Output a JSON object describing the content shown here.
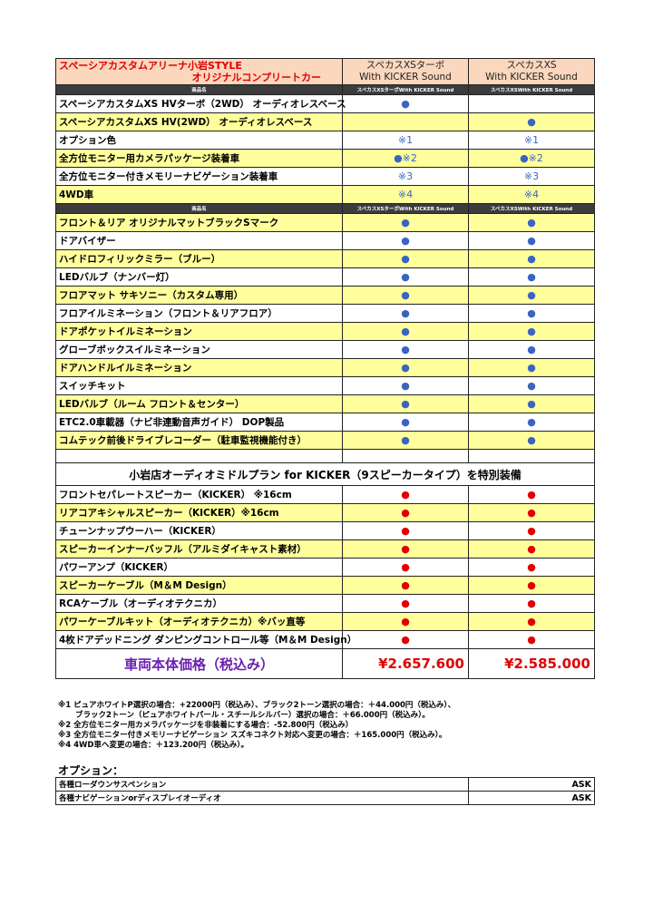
{
  "header": {
    "title_line1": "スペーシアカスタムアリーナ小岩STYLE",
    "title_line2": "オリジナルコンプリートカー",
    "col1_line1": "スペカスXSターボ",
    "col1_line2": "With KICKER Sound",
    "col2_line1": "スペカスXS",
    "col2_line2": "With KICKER Sound"
  },
  "subheader": {
    "name": "商品名",
    "col1": "スペカスXSターボWith KICKER Sound",
    "col2": "スペカスXSWith KICKER Sound"
  },
  "colors": {
    "blue_dot": "#3a64c0",
    "red_dot": "#e00000",
    "yellow": "#ffff9c",
    "pink": "#fbd7bd"
  },
  "base_rows": [
    {
      "label": "スペーシアカスタムXS HVターボ（2WD） オーディオレスベース",
      "c1": "●",
      "c2": ""
    },
    {
      "label": "スペーシアカスタムXS HV(2WD） オーディオレスベース",
      "c1": "",
      "c2": "●"
    },
    {
      "label": "オプション色",
      "c1": "※1",
      "c2": "※1"
    },
    {
      "label": "全方位モニター用カメラパッケージ装着車",
      "c1": "●※2",
      "c2": "●※2"
    },
    {
      "label": "全方位モニター付きメモリーナビゲーション装着車",
      "c1": "※3",
      "c2": "※3"
    },
    {
      "label": "4WD車",
      "c1": "※4",
      "c2": "※4"
    }
  ],
  "equip_rows": [
    {
      "label": "フロント＆リア オリジナルマットブラックSマーク",
      "c1": "●",
      "c2": "●"
    },
    {
      "label": "ドアバイザー",
      "c1": "●",
      "c2": "●"
    },
    {
      "label": "ハイドロフィリックミラー（ブルー）",
      "c1": "●",
      "c2": "●"
    },
    {
      "label": "LEDバルブ（ナンバー灯）",
      "c1": "●",
      "c2": "●"
    },
    {
      "label": "フロアマット サキソニー（カスタム専用）",
      "c1": "●",
      "c2": "●"
    },
    {
      "label": "フロアイルミネーション（フロント＆リアフロア）",
      "c1": "●",
      "c2": "●"
    },
    {
      "label": "ドアポケットイルミネーション",
      "c1": "●",
      "c2": "●"
    },
    {
      "label": "グローブボックスイルミネーション",
      "c1": "●",
      "c2": "●"
    },
    {
      "label": "ドアハンドルイルミネーション",
      "c1": "●",
      "c2": "●"
    },
    {
      "label": "スイッチキット",
      "c1": "●",
      "c2": "●"
    },
    {
      "label": "LEDバルブ（ルーム フロント＆センター）",
      "c1": "●",
      "c2": "●"
    },
    {
      "label": "ETC2.0車載器（ナビ非連動音声ガイド） DOP製品",
      "c1": "●",
      "c2": "●"
    },
    {
      "label": "コムテック前後ドライブレコーダー（駐車監視機能付き）",
      "c1": "●",
      "c2": "●"
    }
  ],
  "audio_section_title": "小岩店オーディオミドルプラン for KICKER（9スピーカータイプ）を特別装備",
  "audio_rows": [
    {
      "label": "フロントセパレートスピーカー（KICKER） ※16cm",
      "c1": "●",
      "c2": "●"
    },
    {
      "label": "リアコアキシャルスピーカー（KICKER）※16cm",
      "c1": "●",
      "c2": "●"
    },
    {
      "label": "チューンナップウーハー（KICKER）",
      "c1": "●",
      "c2": "●"
    },
    {
      "label": "スピーカーインナーバッフル（アルミダイキャスト素材）",
      "c1": "●",
      "c2": "●"
    },
    {
      "label": "パワーアンプ（KICKER）",
      "c1": "●",
      "c2": "●"
    },
    {
      "label": "スピーカーケーブル（M＆M Design）",
      "c1": "●",
      "c2": "●"
    },
    {
      "label": "RCAケーブル（オーディオテクニカ）",
      "c1": "●",
      "c2": "●"
    },
    {
      "label": "パワーケーブルキット（オーディオテクニカ）※バッ直等",
      "c1": "●",
      "c2": "●"
    },
    {
      "label": "4枚ドアデッドニング ダンピングコントロール等（M＆M Design）",
      "c1": "●",
      "c2": "●"
    }
  ],
  "price": {
    "label": "車両本体価格（税込み）",
    "col1": "¥2.657.600",
    "col2": "¥2.585.000"
  },
  "notes": [
    "※1 ピュアホワイトP選択の場合：+22000円（税込み）、ブラック2トーン選択の場合：＋44.000円（税込み）、",
    "ブラック2トーン（ピュアホワイトパール・スチールシルバー）選択の場合：＋66.000円（税込み）。",
    "※2 全方位モニター用カメラパッケージを非装着にする場合：-52.800円（税込み）",
    "※3 全方位モニター付きメモリーナビゲーション スズキコネクト対応へ変更の場合：＋165.000円（税込み）。",
    "※4 4WD車へ変更の場合：＋123.200円（税込み）。"
  ],
  "options": {
    "title": "オプション：",
    "rows": [
      {
        "label": "各種ローダウンサスペンション",
        "value": "ASK"
      },
      {
        "label": "各種ナビゲーションorディスプレイオーディオ",
        "value": "ASK"
      }
    ]
  }
}
